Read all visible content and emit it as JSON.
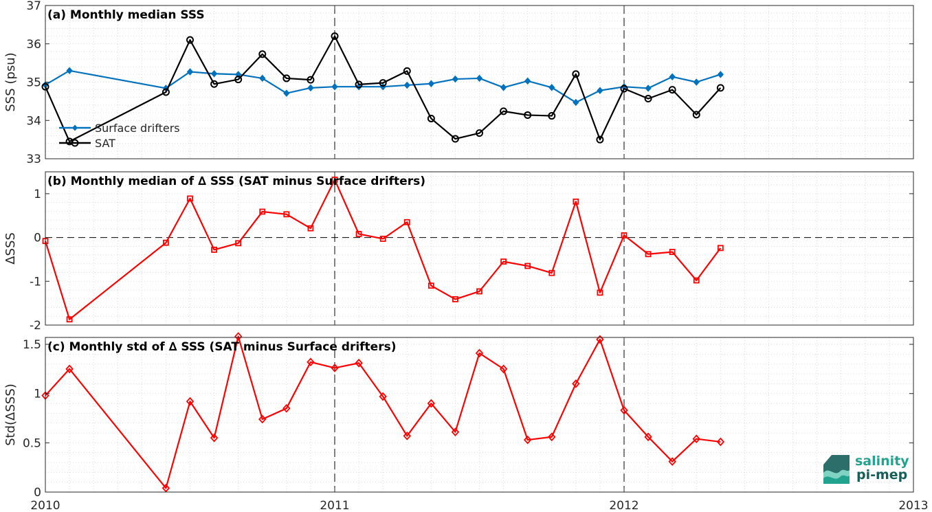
{
  "colors": {
    "drifters": "#0072BD",
    "sat": "#000000",
    "delta": "#FF0000",
    "logo_teal": "#21A38F",
    "logo_dark": "#155E5A"
  },
  "x_axis": {
    "ticks": [
      "2010",
      "2011",
      "2012",
      "2013"
    ],
    "range": [
      2010,
      2013
    ],
    "vlines": [
      2011,
      2012
    ]
  },
  "logo": {
    "line1": "salinity",
    "line2": "pi-mep"
  },
  "chart_data": [
    {
      "id": "a",
      "type": "line",
      "title": "(a) Monthly median SSS",
      "ylabel": "SSS (psu)",
      "ylim": [
        33,
        37
      ],
      "yticks": [
        "33",
        "34",
        "35",
        "36",
        "37"
      ],
      "grid": true,
      "legend_position": "left",
      "x": [
        "2010-01",
        "2010-02",
        "2010-06",
        "2010-07",
        "2010-08",
        "2010-09",
        "2010-10",
        "2010-11",
        "2010-12",
        "2011-01",
        "2011-02",
        "2011-03",
        "2011-04",
        "2011-05",
        "2011-06",
        "2011-07",
        "2011-08",
        "2011-09",
        "2011-10",
        "2011-11",
        "2011-12",
        "2012-01",
        "2012-02",
        "2012-03",
        "2012-04",
        "2012-05"
      ],
      "series": [
        {
          "name": "Surface drifters",
          "marker": "diamond-filled",
          "values": [
            34.93,
            35.3,
            34.84,
            35.27,
            35.22,
            35.2,
            35.1,
            34.71,
            34.85,
            34.88,
            34.88,
            34.88,
            34.92,
            34.96,
            35.08,
            35.1,
            34.86,
            35.03,
            34.86,
            34.47,
            34.78,
            34.88,
            34.84,
            35.14,
            35.0,
            35.2
          ]
        },
        {
          "name": "SAT",
          "marker": "circle",
          "values": [
            34.88,
            33.45,
            34.74,
            36.1,
            34.95,
            35.07,
            35.73,
            35.1,
            35.06,
            36.2,
            34.94,
            34.98,
            35.29,
            34.05,
            33.52,
            33.67,
            34.24,
            34.14,
            34.12,
            35.21,
            33.5,
            34.83,
            34.57,
            34.8,
            34.15,
            34.85
          ]
        }
      ]
    },
    {
      "id": "b",
      "type": "line",
      "title": "(b) Monthly median of ∆ SSS (SAT minus Surface drifters)",
      "ylabel": "ΔSSS",
      "ylim": [
        -2,
        1.5
      ],
      "yticks": [
        "-2",
        "-1",
        "0",
        "1"
      ],
      "grid": true,
      "zero_line": true,
      "x": [
        "2010-01",
        "2010-02",
        "2010-06",
        "2010-07",
        "2010-08",
        "2010-09",
        "2010-10",
        "2010-11",
        "2010-12",
        "2011-01",
        "2011-02",
        "2011-03",
        "2011-04",
        "2011-05",
        "2011-06",
        "2011-07",
        "2011-08",
        "2011-09",
        "2011-10",
        "2011-11",
        "2011-12",
        "2012-01",
        "2012-02",
        "2012-03",
        "2012-04",
        "2012-05"
      ],
      "series": [
        {
          "marker": "square",
          "values": [
            -0.08,
            -1.87,
            -0.12,
            0.89,
            -0.28,
            -0.13,
            0.59,
            0.53,
            0.21,
            1.32,
            0.08,
            -0.03,
            0.35,
            -1.1,
            -1.41,
            -1.23,
            -0.55,
            -0.65,
            -0.81,
            0.82,
            -1.26,
            0.05,
            -0.38,
            -0.33,
            -0.98,
            -0.24
          ]
        }
      ]
    },
    {
      "id": "c",
      "type": "line",
      "title": "(c) Monthly std of ∆ SSS (SAT minus Surface drifters)",
      "ylabel": "Std(ΔSSS)",
      "ylim": [
        0,
        1.57
      ],
      "yticks": [
        "0",
        "0.5",
        "1",
        "1.5"
      ],
      "grid": true,
      "x": [
        "2010-01",
        "2010-02",
        "2010-06",
        "2010-07",
        "2010-08",
        "2010-09",
        "2010-10",
        "2010-11",
        "2010-12",
        "2011-01",
        "2011-02",
        "2011-03",
        "2011-04",
        "2011-05",
        "2011-06",
        "2011-07",
        "2011-08",
        "2011-09",
        "2011-10",
        "2011-11",
        "2011-12",
        "2012-01",
        "2012-02",
        "2012-03",
        "2012-04",
        "2012-05"
      ],
      "series": [
        {
          "marker": "diamond",
          "values": [
            0.98,
            1.25,
            0.04,
            0.92,
            0.55,
            1.58,
            0.74,
            0.85,
            1.32,
            1.26,
            1.31,
            0.97,
            0.57,
            0.9,
            0.61,
            1.41,
            1.25,
            0.53,
            0.56,
            1.1,
            1.55,
            0.83,
            0.56,
            0.31,
            0.54,
            0.51
          ]
        }
      ]
    }
  ]
}
